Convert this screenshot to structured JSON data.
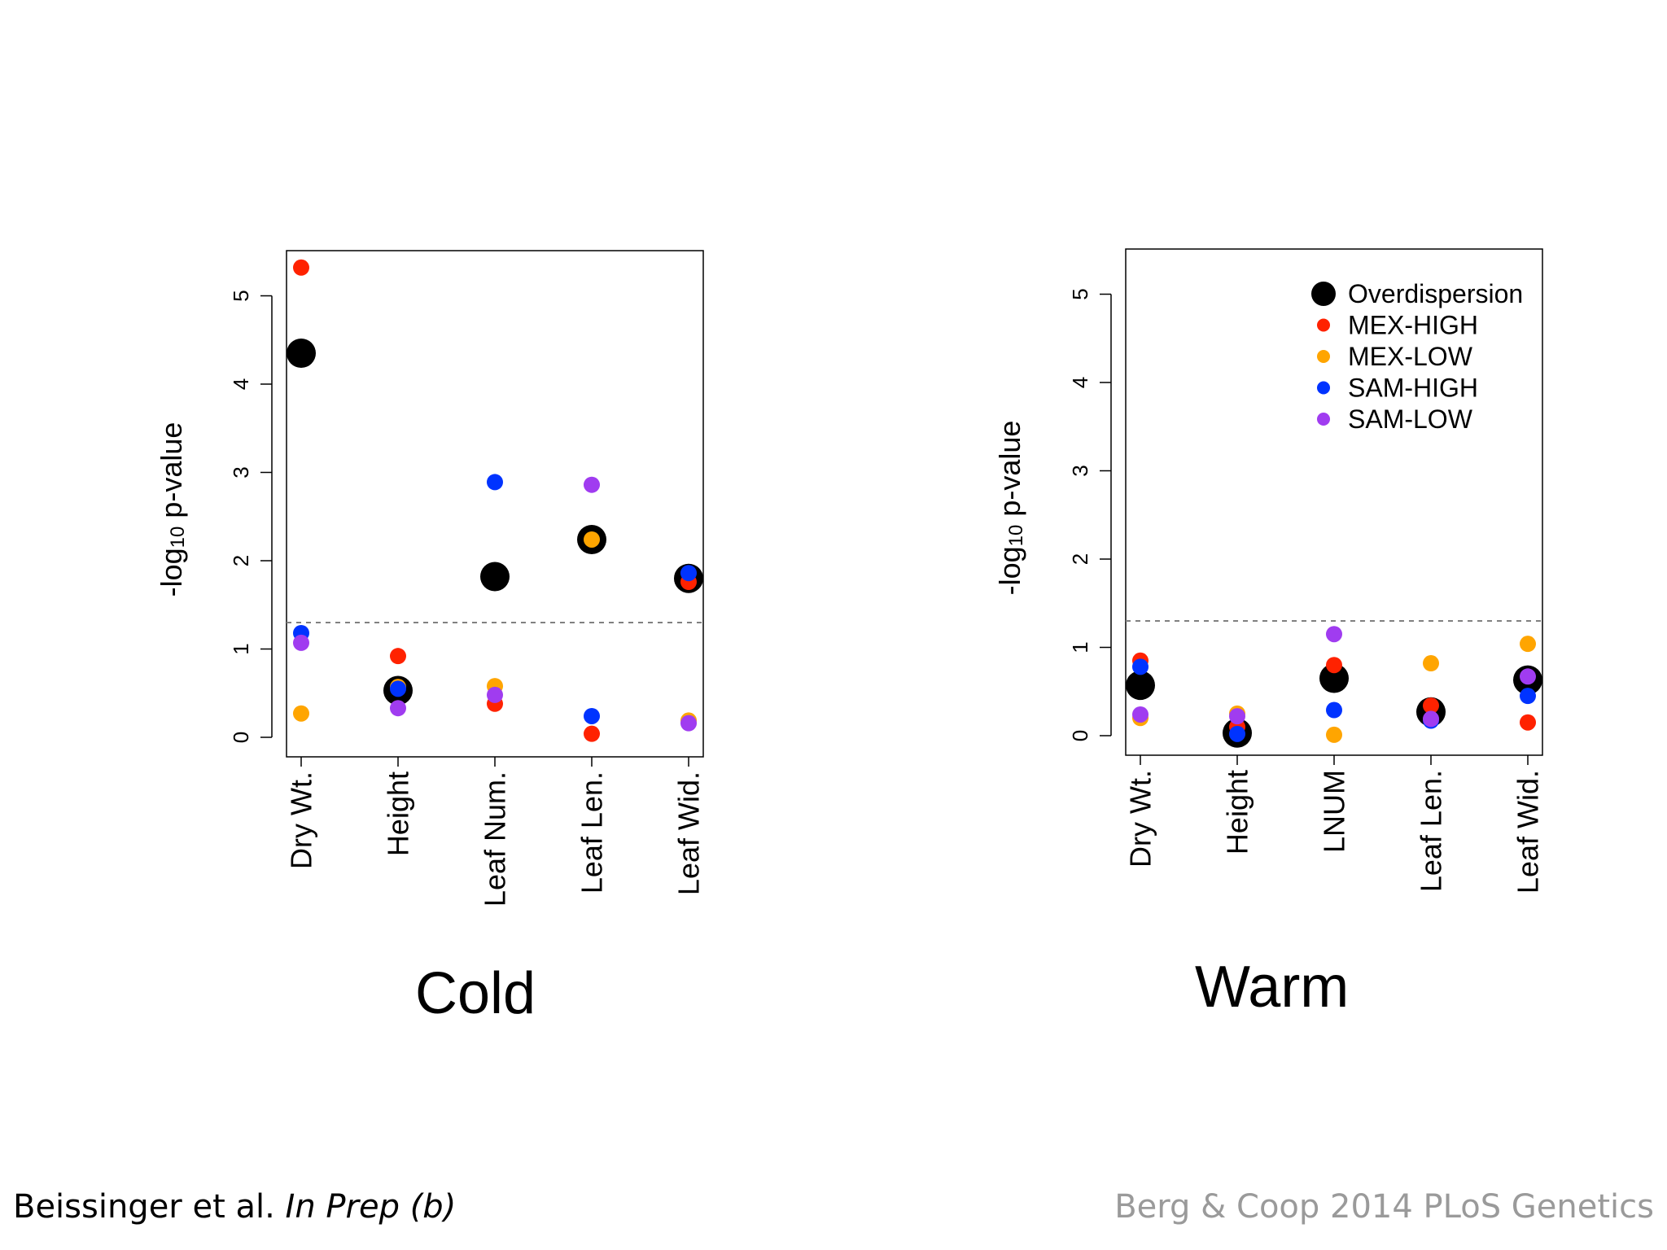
{
  "colors": {
    "Overdispersion": "#000000",
    "MEX-HIGH": "#ff2200",
    "MEX-LOW": "#ffa500",
    "SAM-HIGH": "#0033ff",
    "SAM-LOW": "#a03cf0",
    "threshold": "#808080"
  },
  "legend_entries": [
    "Overdispersion",
    "MEX-HIGH",
    "MEX-LOW",
    "SAM-HIGH",
    "SAM-LOW"
  ],
  "footer": {
    "citation_left_authors": "Beissinger et al.",
    "citation_left_status": "In Prep (b)",
    "citation_right": "Berg & Coop 2014 PLoS Genetics"
  },
  "chart_data": [
    {
      "type": "scatter",
      "title": "Cold",
      "ylabel": "-log10 p-value",
      "ylim": [
        0,
        5.5
      ],
      "yticks": [
        "0",
        "1",
        "2",
        "3",
        "4",
        "5"
      ],
      "categories": [
        "Dry Wt.",
        "Height",
        "Leaf Num.",
        "Leaf Len.",
        "Leaf Wid."
      ],
      "threshold": 1.3,
      "legend": false,
      "series": [
        {
          "name": "Overdispersion",
          "values": [
            4.35,
            0.53,
            1.82,
            2.24,
            1.8
          ]
        },
        {
          "name": "MEX-HIGH",
          "values": [
            5.32,
            0.92,
            0.38,
            0.04,
            1.76
          ]
        },
        {
          "name": "MEX-LOW",
          "values": [
            0.27,
            0.57,
            0.58,
            2.24,
            0.19
          ]
        },
        {
          "name": "SAM-HIGH",
          "values": [
            1.18,
            0.55,
            2.89,
            0.24,
            1.86
          ]
        },
        {
          "name": "SAM-LOW",
          "values": [
            1.07,
            0.33,
            0.48,
            2.86,
            0.16
          ]
        }
      ]
    },
    {
      "type": "scatter",
      "title": "Warm",
      "ylabel": "-log10 p-value",
      "ylim": [
        0,
        5.5
      ],
      "yticks": [
        "0",
        "1",
        "2",
        "3",
        "4",
        "5"
      ],
      "categories": [
        "Dry Wt.",
        "Height",
        "LNUM",
        "Leaf Len.",
        "Leaf Wid."
      ],
      "threshold": 1.3,
      "legend": true,
      "legend_position": "top-right",
      "series": [
        {
          "name": "Overdispersion",
          "values": [
            0.57,
            0.03,
            0.65,
            0.27,
            0.63
          ]
        },
        {
          "name": "MEX-HIGH",
          "values": [
            0.85,
            0.1,
            0.8,
            0.34,
            0.15
          ]
        },
        {
          "name": "MEX-LOW",
          "values": [
            0.2,
            0.25,
            0.01,
            0.82,
            1.04
          ]
        },
        {
          "name": "SAM-HIGH",
          "values": [
            0.78,
            0.02,
            0.29,
            0.17,
            0.45
          ]
        },
        {
          "name": "SAM-LOW",
          "values": [
            0.24,
            0.22,
            1.15,
            0.19,
            0.67
          ]
        }
      ]
    }
  ]
}
